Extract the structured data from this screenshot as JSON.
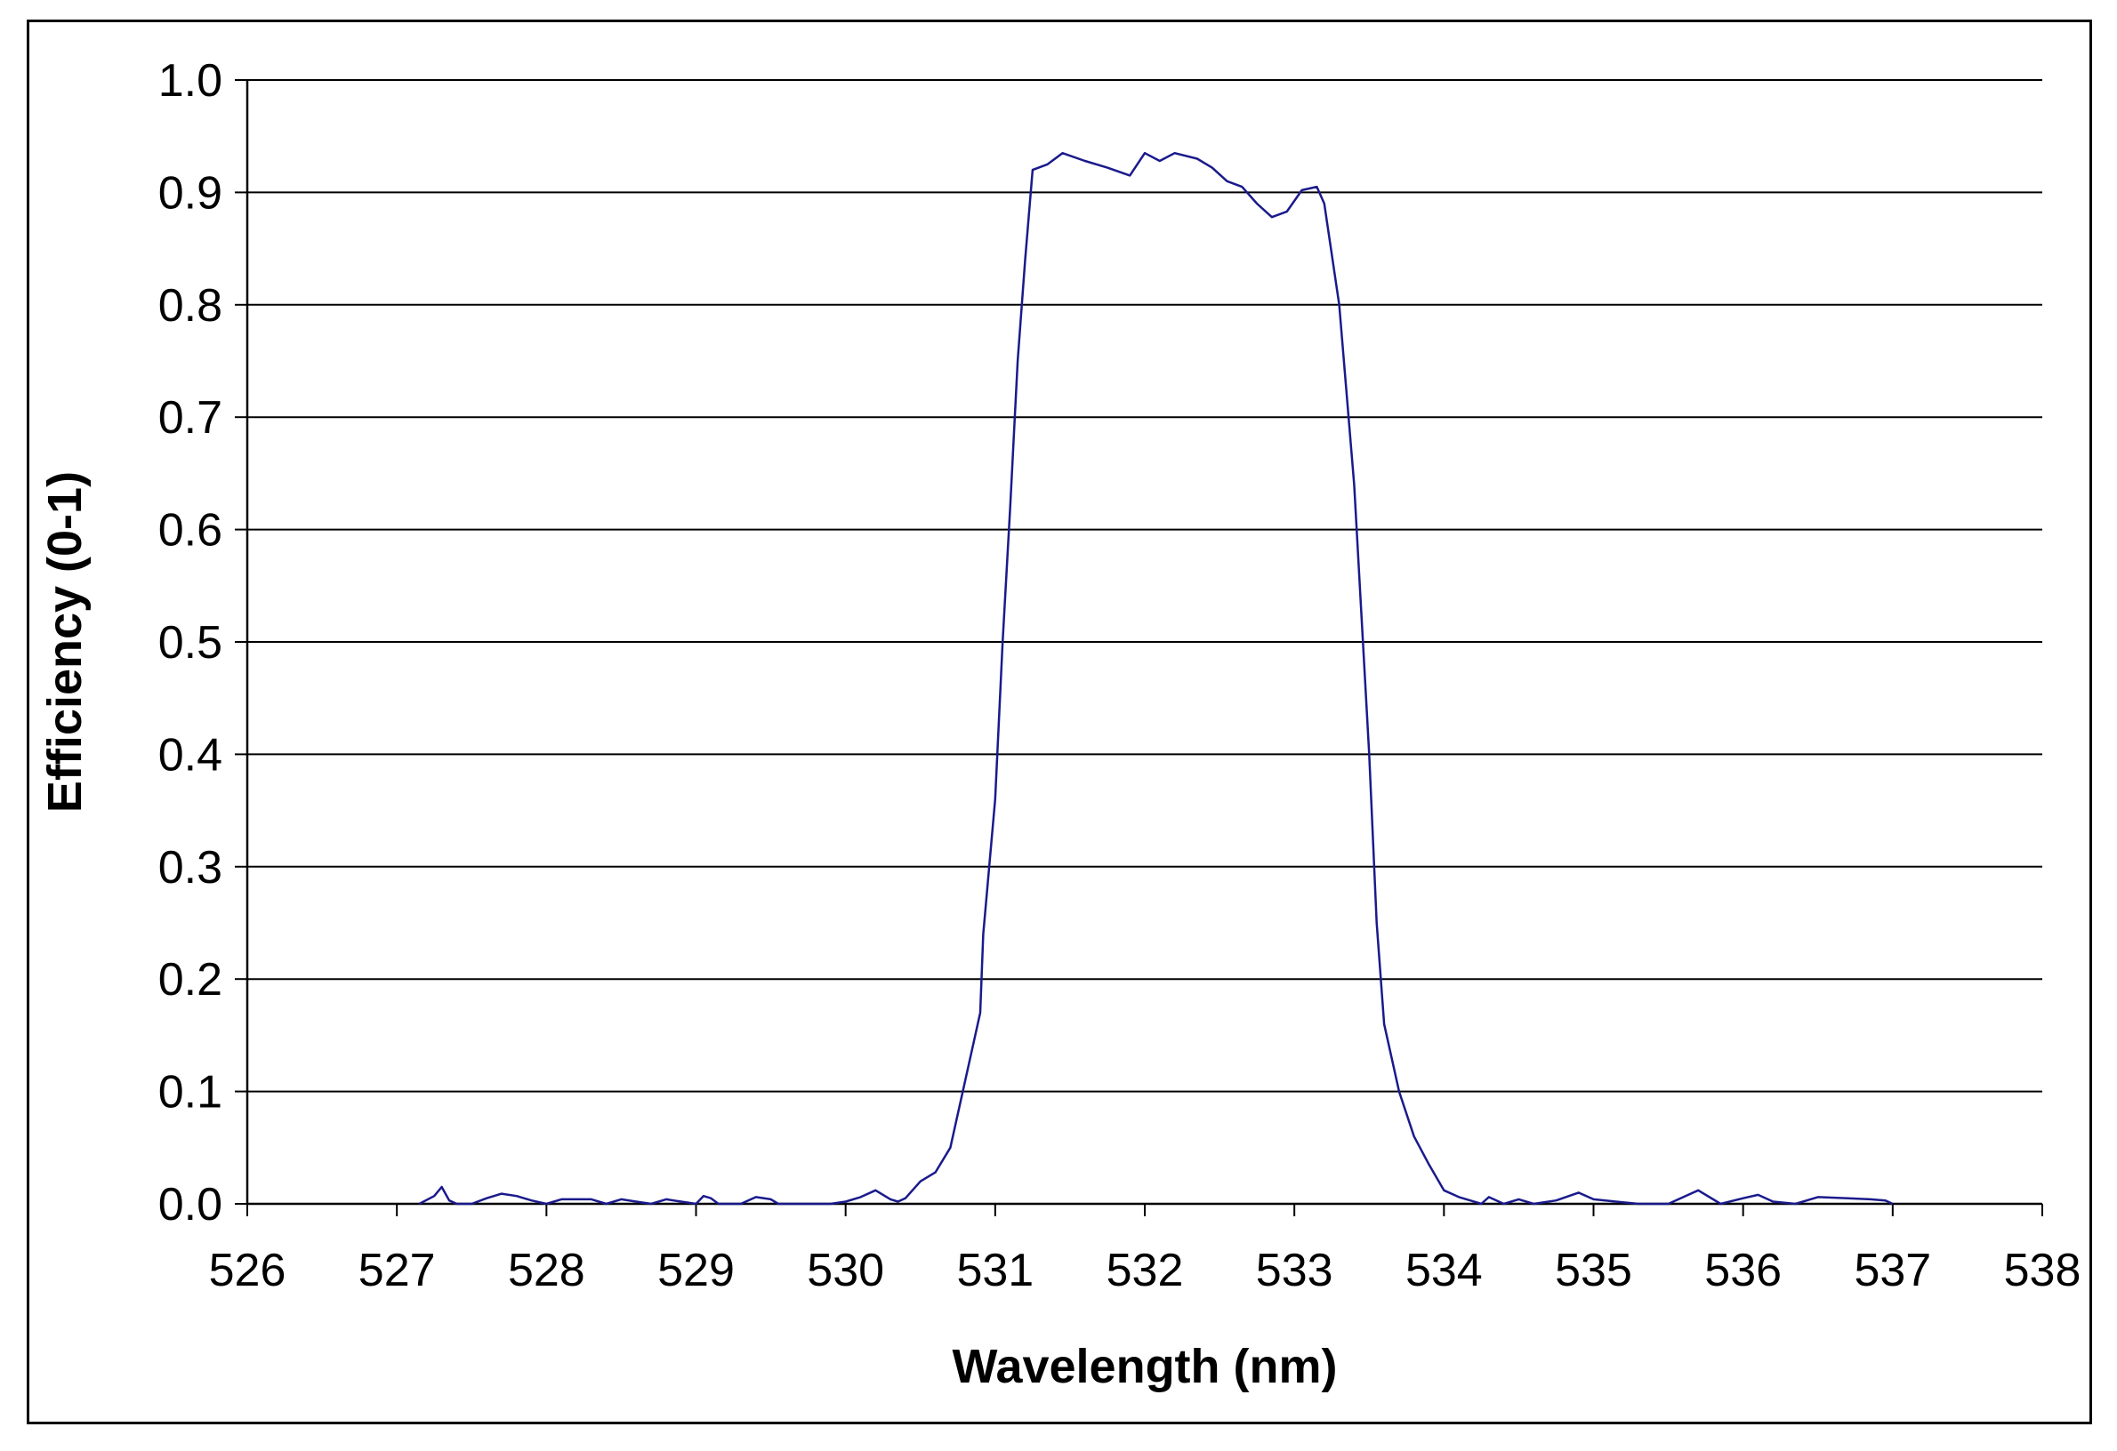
{
  "chart_data": {
    "type": "line",
    "xlabel": "Wavelength (nm)",
    "ylabel": "Efficiency (0-1)",
    "xlim": [
      526,
      538
    ],
    "ylim": [
      0,
      1.0
    ],
    "x_ticks": [
      "526",
      "527",
      "528",
      "529",
      "530",
      "531",
      "532",
      "533",
      "534",
      "535",
      "536",
      "537",
      "538"
    ],
    "y_ticks": [
      "0.0",
      "0.1",
      "0.2",
      "0.3",
      "0.4",
      "0.5",
      "0.6",
      "0.7",
      "0.8",
      "0.9",
      "1.0"
    ],
    "grid": "horizontal",
    "legend": "none",
    "line_color": "#1a1a8c",
    "series": [
      {
        "points": [
          [
            527.15,
            0.0
          ],
          [
            527.25,
            0.007
          ],
          [
            527.3,
            0.015
          ],
          [
            527.35,
            0.003
          ],
          [
            527.4,
            0.0
          ],
          [
            527.5,
            0.0
          ],
          [
            527.6,
            0.005
          ],
          [
            527.7,
            0.009
          ],
          [
            527.8,
            0.007
          ],
          [
            527.9,
            0.003
          ],
          [
            528.0,
            0.0
          ],
          [
            528.1,
            0.004
          ],
          [
            528.3,
            0.004
          ],
          [
            528.4,
            0.0
          ],
          [
            528.5,
            0.004
          ],
          [
            528.6,
            0.002
          ],
          [
            528.7,
            0.0
          ],
          [
            528.8,
            0.004
          ],
          [
            528.9,
            0.002
          ],
          [
            529.0,
            0.0
          ],
          [
            529.05,
            0.007
          ],
          [
            529.1,
            0.005
          ],
          [
            529.15,
            0.0
          ],
          [
            529.3,
            0.0
          ],
          [
            529.4,
            0.006
          ],
          [
            529.5,
            0.004
          ],
          [
            529.55,
            0.0
          ],
          [
            529.9,
            0.0
          ],
          [
            530.0,
            0.002
          ],
          [
            530.1,
            0.006
          ],
          [
            530.2,
            0.012
          ],
          [
            530.3,
            0.004
          ],
          [
            530.35,
            0.002
          ],
          [
            530.4,
            0.005
          ],
          [
            530.5,
            0.02
          ],
          [
            530.6,
            0.028
          ],
          [
            530.7,
            0.05
          ],
          [
            530.8,
            0.11
          ],
          [
            530.9,
            0.17
          ],
          [
            530.92,
            0.24
          ],
          [
            531.0,
            0.36
          ],
          [
            531.05,
            0.5
          ],
          [
            531.1,
            0.62
          ],
          [
            531.15,
            0.75
          ],
          [
            531.2,
            0.84
          ],
          [
            531.25,
            0.92
          ],
          [
            531.35,
            0.925
          ],
          [
            531.45,
            0.935
          ],
          [
            531.6,
            0.928
          ],
          [
            531.75,
            0.922
          ],
          [
            531.9,
            0.915
          ],
          [
            532.0,
            0.935
          ],
          [
            532.1,
            0.928
          ],
          [
            532.2,
            0.935
          ],
          [
            532.35,
            0.93
          ],
          [
            532.45,
            0.922
          ],
          [
            532.55,
            0.91
          ],
          [
            532.65,
            0.905
          ],
          [
            532.75,
            0.89
          ],
          [
            532.85,
            0.878
          ],
          [
            532.95,
            0.883
          ],
          [
            533.05,
            0.902
          ],
          [
            533.15,
            0.905
          ],
          [
            533.2,
            0.89
          ],
          [
            533.3,
            0.8
          ],
          [
            533.4,
            0.64
          ],
          [
            533.5,
            0.4
          ],
          [
            533.55,
            0.25
          ],
          [
            533.6,
            0.16
          ],
          [
            533.7,
            0.1
          ],
          [
            533.8,
            0.06
          ],
          [
            533.9,
            0.035
          ],
          [
            534.0,
            0.012
          ],
          [
            534.1,
            0.006
          ],
          [
            534.15,
            0.004
          ],
          [
            534.25,
            0.0
          ],
          [
            534.3,
            0.006
          ],
          [
            534.4,
            0.0
          ],
          [
            534.5,
            0.004
          ],
          [
            534.6,
            0.0
          ],
          [
            534.75,
            0.003
          ],
          [
            534.9,
            0.01
          ],
          [
            535.0,
            0.004
          ],
          [
            535.15,
            0.002
          ],
          [
            535.3,
            0.0
          ],
          [
            535.5,
            0.0
          ],
          [
            535.7,
            0.012
          ],
          [
            535.85,
            0.0
          ],
          [
            536.0,
            0.005
          ],
          [
            536.1,
            0.008
          ],
          [
            536.2,
            0.002
          ],
          [
            536.35,
            0.0
          ],
          [
            536.5,
            0.006
          ],
          [
            536.7,
            0.005
          ],
          [
            536.85,
            0.004
          ],
          [
            536.95,
            0.003
          ],
          [
            537.0,
            0.0
          ]
        ]
      }
    ]
  }
}
